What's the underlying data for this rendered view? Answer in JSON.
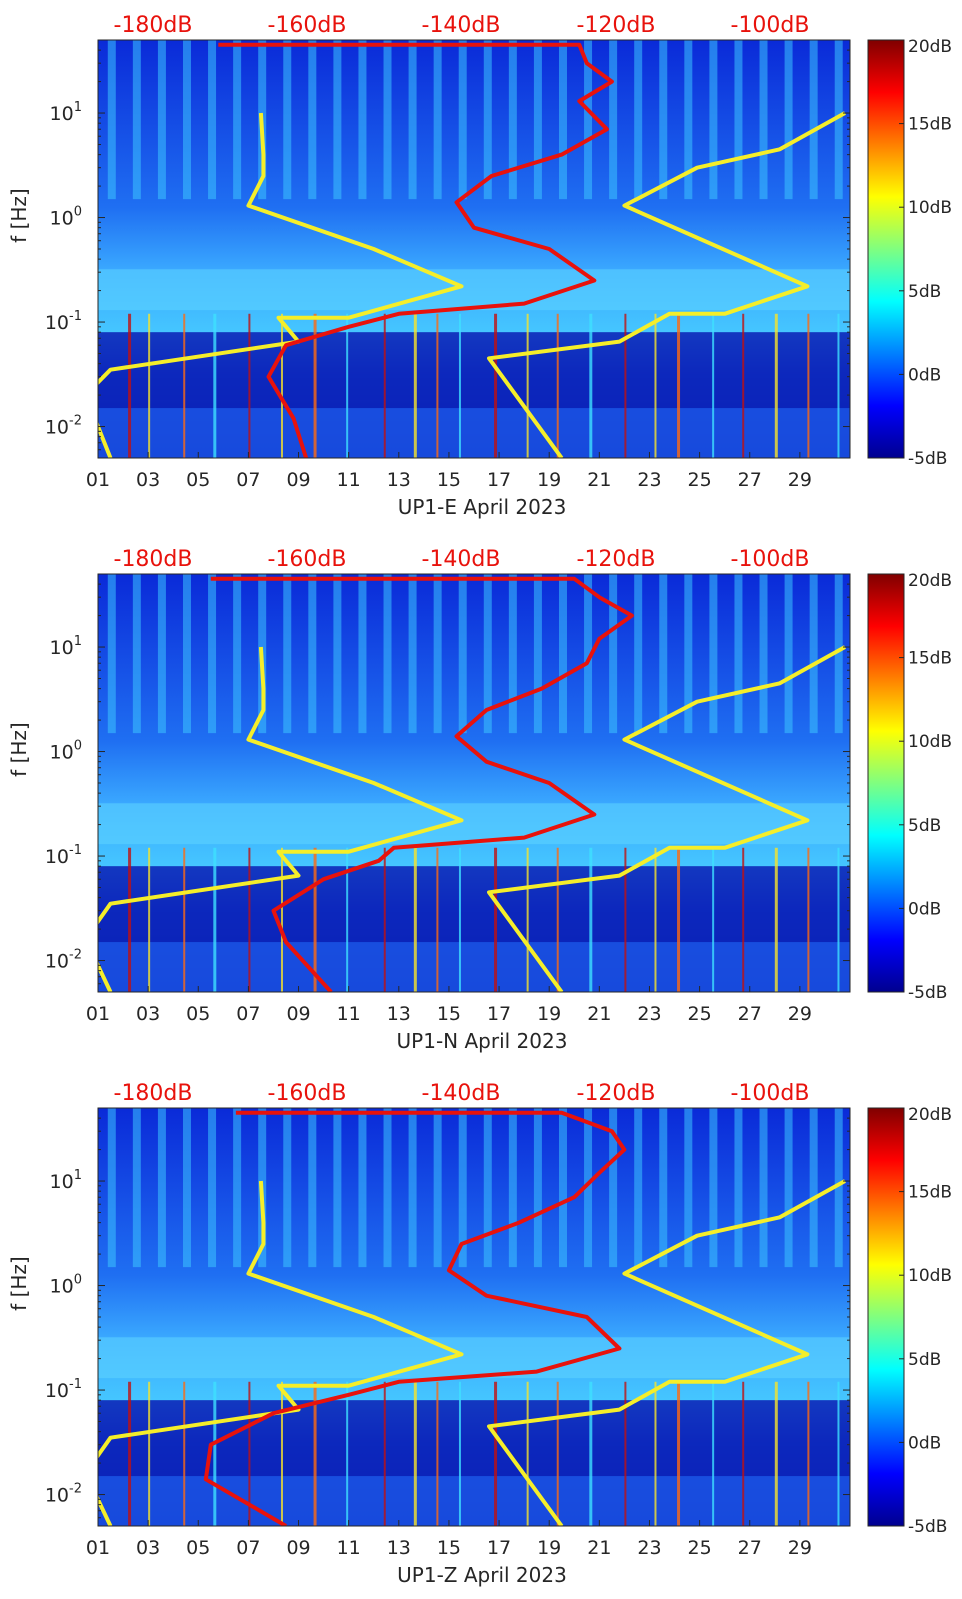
{
  "chart_data": [
    {
      "type": "heatmap",
      "xlabel": "UP1-E April 2023",
      "ylabel": "f [Hz]",
      "x_ticks": [
        "01",
        "03",
        "05",
        "07",
        "09",
        "11",
        "13",
        "15",
        "17",
        "19",
        "21",
        "23",
        "25",
        "27",
        "29"
      ],
      "y_ticks": [
        "10^-2",
        "10^-1",
        "10^0",
        "10^1"
      ],
      "yscale": "log",
      "ylim": [
        0.005,
        50
      ],
      "xlim": [
        1,
        31
      ],
      "top_axis_ticks": [
        "-180dB",
        "-160dB",
        "-140dB",
        "-120dB",
        "-100dB"
      ],
      "colorbar": {
        "ticks": [
          "20dB",
          "15dB",
          "10dB",
          "5dB",
          "0dB",
          "-5dB"
        ],
        "range": [
          -5,
          20
        ],
        "colormap": "jet"
      },
      "series": [
        {
          "color": "#f5ee2a",
          "x": [
            7.5,
            7.6,
            7.6,
            7.0,
            12.0,
            15.5,
            11.0,
            8.2,
            9.0,
            1.5,
            0.5,
            1.5
          ],
          "y": [
            10,
            4,
            2.5,
            1.3,
            0.5,
            0.22,
            0.11,
            0.11,
            0.065,
            0.035,
            0.02,
            0.005
          ]
        },
        {
          "color": "#f5ee2a",
          "x": [
            30.8,
            28.2,
            24.9,
            22.0,
            29.3,
            26.0,
            23.8,
            21.8,
            16.6,
            19.5
          ],
          "y": [
            10,
            4.5,
            3.0,
            1.3,
            0.22,
            0.12,
            0.12,
            0.065,
            0.045,
            0.005
          ]
        },
        {
          "color": "#e8120c",
          "x": [
            5.8,
            20.2,
            20.5,
            21.5,
            20.2,
            21.3,
            19.5,
            16.7,
            15.3,
            16.0,
            19.0,
            20.8,
            18.0,
            13.0,
            11.0,
            8.5,
            7.8,
            8.8,
            9.3
          ],
          "y": [
            45,
            45,
            30,
            20,
            13,
            7,
            4,
            2.5,
            1.4,
            0.8,
            0.5,
            0.25,
            0.15,
            0.12,
            0.09,
            0.06,
            0.03,
            0.012,
            0.005
          ]
        }
      ]
    },
    {
      "type": "heatmap",
      "xlabel": "UP1-N April 2023",
      "ylabel": "f [Hz]",
      "x_ticks": [
        "01",
        "03",
        "05",
        "07",
        "09",
        "11",
        "13",
        "15",
        "17",
        "19",
        "21",
        "23",
        "25",
        "27",
        "29"
      ],
      "y_ticks": [
        "10^-2",
        "10^-1",
        "10^0",
        "10^1"
      ],
      "yscale": "log",
      "ylim": [
        0.005,
        50
      ],
      "xlim": [
        1,
        31
      ],
      "top_axis_ticks": [
        "-180dB",
        "-160dB",
        "-140dB",
        "-120dB",
        "-100dB"
      ],
      "colorbar": {
        "ticks": [
          "20dB",
          "15dB",
          "10dB",
          "5dB",
          "0dB",
          "-5dB"
        ],
        "range": [
          -5,
          20
        ],
        "colormap": "jet"
      },
      "series": [
        {
          "color": "#f5ee2a",
          "x": [
            7.5,
            7.6,
            7.6,
            7.0,
            12.0,
            15.5,
            11.0,
            8.2,
            9.0,
            1.5,
            0.5,
            1.5
          ],
          "y": [
            10,
            4,
            2.5,
            1.3,
            0.5,
            0.22,
            0.11,
            0.11,
            0.065,
            0.035,
            0.016,
            0.005
          ]
        },
        {
          "color": "#f5ee2a",
          "x": [
            30.8,
            28.2,
            24.9,
            22.0,
            29.3,
            26.0,
            23.8,
            21.8,
            16.6,
            19.5
          ],
          "y": [
            10,
            4.5,
            3.0,
            1.3,
            0.22,
            0.12,
            0.12,
            0.065,
            0.045,
            0.005
          ]
        },
        {
          "color": "#e8120c",
          "x": [
            5.5,
            20.0,
            21.0,
            22.3,
            21.0,
            20.5,
            18.7,
            16.5,
            15.3,
            16.5,
            19.0,
            20.8,
            18.0,
            12.8,
            12.2,
            10.0,
            8.0,
            8.5,
            10.3
          ],
          "y": [
            45,
            45,
            30,
            20,
            12,
            7,
            4,
            2.5,
            1.4,
            0.8,
            0.5,
            0.25,
            0.15,
            0.12,
            0.09,
            0.06,
            0.03,
            0.015,
            0.005
          ]
        }
      ]
    },
    {
      "type": "heatmap",
      "xlabel": "UP1-Z April 2023",
      "ylabel": "f [Hz]",
      "x_ticks": [
        "01",
        "03",
        "05",
        "07",
        "09",
        "11",
        "13",
        "15",
        "17",
        "19",
        "21",
        "23",
        "25",
        "27",
        "29"
      ],
      "y_ticks": [
        "10^-2",
        "10^-1",
        "10^0",
        "10^1"
      ],
      "yscale": "log",
      "ylim": [
        0.005,
        50
      ],
      "xlim": [
        1,
        31
      ],
      "top_axis_ticks": [
        "-180dB",
        "-160dB",
        "-140dB",
        "-120dB",
        "-100dB"
      ],
      "colorbar": {
        "ticks": [
          "20dB",
          "15dB",
          "10dB",
          "5dB",
          "0dB",
          "-5dB"
        ],
        "range": [
          -5,
          20
        ],
        "colormap": "jet"
      },
      "series": [
        {
          "color": "#f5ee2a",
          "x": [
            7.5,
            7.6,
            7.6,
            7.0,
            12.0,
            15.5,
            11.0,
            8.2,
            9.0,
            1.5,
            0.5,
            1.5
          ],
          "y": [
            10,
            4,
            2.5,
            1.3,
            0.5,
            0.22,
            0.11,
            0.11,
            0.065,
            0.035,
            0.016,
            0.005
          ]
        },
        {
          "color": "#f5ee2a",
          "x": [
            30.8,
            28.2,
            24.9,
            22.0,
            29.3,
            26.0,
            23.8,
            21.8,
            16.6,
            19.5
          ],
          "y": [
            10,
            4.5,
            3.0,
            1.3,
            0.22,
            0.12,
            0.12,
            0.065,
            0.045,
            0.005
          ]
        },
        {
          "color": "#e8120c",
          "x": [
            6.5,
            19.5,
            21.5,
            22.0,
            21.0,
            20.0,
            17.8,
            15.5,
            15.0,
            16.5,
            20.5,
            21.8,
            18.5,
            13.0,
            11.0,
            8.0,
            5.5,
            5.3,
            8.5
          ],
          "y": [
            45,
            45,
            30,
            20,
            12,
            7,
            4,
            2.5,
            1.4,
            0.8,
            0.5,
            0.25,
            0.15,
            0.12,
            0.09,
            0.06,
            0.03,
            0.014,
            0.005
          ]
        }
      ]
    }
  ]
}
